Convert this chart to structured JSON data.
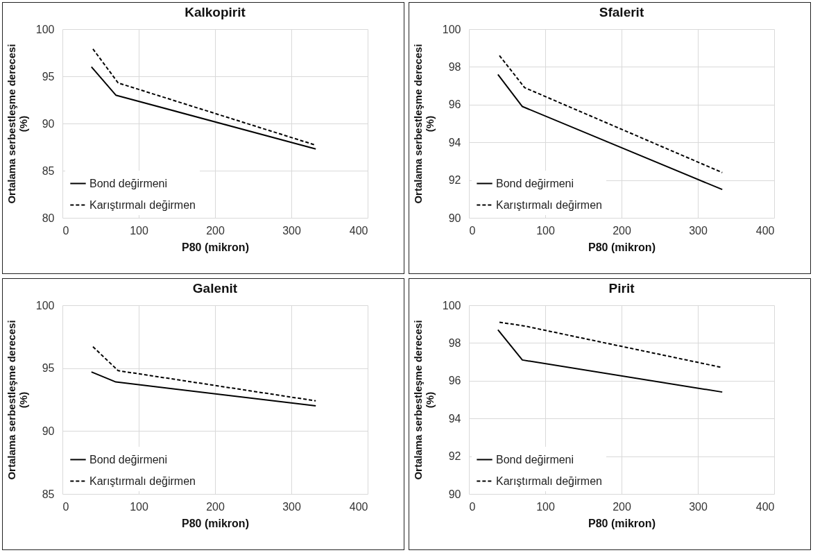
{
  "chart_data": [
    {
      "type": "line",
      "title": "Kalkopirit",
      "xlabel": "P80 (mikron)",
      "ylabel": "Ortalama serbestleşme derecesi (%)",
      "xlim": [
        0,
        400
      ],
      "xticks": [
        0,
        100,
        200,
        300,
        400
      ],
      "ylim": [
        80,
        100
      ],
      "yticks": [
        80,
        85,
        90,
        95,
        100
      ],
      "grid": true,
      "legend": "bottom left",
      "series": [
        {
          "name": "Bond değirmeni",
          "color": "#000000",
          "line_style": "solid",
          "x": [
            38,
            70,
            332
          ],
          "values": [
            96.0,
            93.0,
            87.3
          ]
        },
        {
          "name": "Karıştırmalı değirmen",
          "color": "#000000",
          "line_style": "dashed",
          "x": [
            40,
            73,
            332
          ],
          "values": [
            97.9,
            94.3,
            87.7
          ]
        }
      ]
    },
    {
      "type": "line",
      "title": "Sfalerit",
      "xlabel": "P80 (mikron)",
      "ylabel": "Ortalama serbestleşme derecesi (%)",
      "xlim": [
        0,
        400
      ],
      "xticks": [
        0,
        100,
        200,
        300,
        400
      ],
      "ylim": [
        90,
        100
      ],
      "yticks": [
        90,
        92,
        94,
        96,
        98,
        100
      ],
      "grid": true,
      "legend": "bottom left",
      "series": [
        {
          "name": "Bond değirmeni",
          "color": "#000000",
          "line_style": "solid",
          "x": [
            38,
            70,
            332
          ],
          "values": [
            97.6,
            95.9,
            91.5
          ]
        },
        {
          "name": "Karıştırmalı değirmen",
          "color": "#000000",
          "line_style": "dashed",
          "x": [
            40,
            73,
            332
          ],
          "values": [
            98.6,
            96.9,
            92.4
          ]
        }
      ]
    },
    {
      "type": "line",
      "title": "Galenit",
      "xlabel": "P80 (mikron)",
      "ylabel": "Ortalama serbestleşme derecesi (%)",
      "xlim": [
        0,
        400
      ],
      "xticks": [
        0,
        100,
        200,
        300,
        400
      ],
      "ylim": [
        85,
        100
      ],
      "yticks": [
        85,
        90,
        95,
        100
      ],
      "grid": true,
      "legend": "bottom left",
      "series": [
        {
          "name": "Bond değirmeni",
          "color": "#000000",
          "line_style": "solid",
          "x": [
            38,
            70,
            332
          ],
          "values": [
            94.7,
            93.9,
            92.0
          ]
        },
        {
          "name": "Karıştırmalı değirmen",
          "color": "#000000",
          "line_style": "dashed",
          "x": [
            40,
            73,
            332
          ],
          "values": [
            96.7,
            94.8,
            92.4
          ]
        }
      ]
    },
    {
      "type": "line",
      "title": "Pirit",
      "xlabel": "P80 (mikron)",
      "ylabel": "Ortalama serbestleşme derecesi (%)",
      "xlim": [
        0,
        400
      ],
      "xticks": [
        0,
        100,
        200,
        300,
        400
      ],
      "ylim": [
        90,
        100
      ],
      "yticks": [
        90,
        92,
        94,
        96,
        98,
        100
      ],
      "grid": true,
      "legend": "bottom left",
      "series": [
        {
          "name": "Bond değirmeni",
          "color": "#000000",
          "line_style": "solid",
          "x": [
            38,
            70,
            332
          ],
          "values": [
            98.7,
            97.1,
            95.4
          ]
        },
        {
          "name": "Karıştırmalı değirmen",
          "color": "#000000",
          "line_style": "dashed",
          "x": [
            40,
            73,
            332
          ],
          "values": [
            99.1,
            98.9,
            96.7
          ]
        }
      ]
    }
  ]
}
